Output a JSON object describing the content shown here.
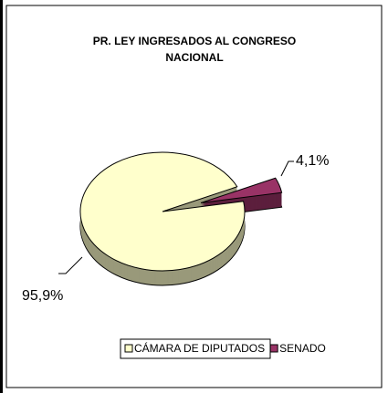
{
  "chart_data": {
    "type": "pie",
    "title": "PR. LEY INGRESADOS AL CONGRESO NACIONAL",
    "categories": [
      "CÁMARA DE DIPUTADOS",
      "SENADO"
    ],
    "values": [
      95.9,
      4.1
    ],
    "value_labels": [
      "95,9%",
      "4,1%"
    ],
    "colors": [
      "#FFFFCC",
      "#993366"
    ],
    "legend": "bottom"
  }
}
